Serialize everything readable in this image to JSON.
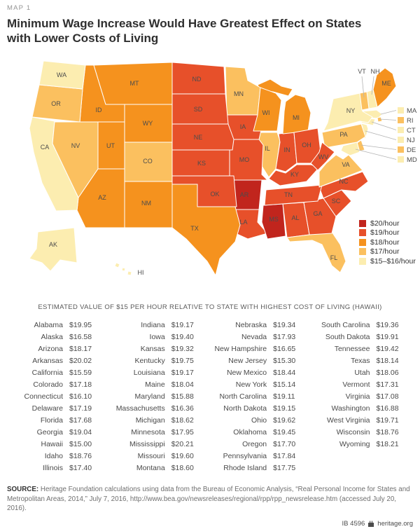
{
  "kicker": "MAP 1",
  "title": "Minimum Wage Increase Would Have Greatest Effect on States with Lower Costs of Living",
  "table_header": "ESTIMATED VALUE OF $15 PER HOUR RELATIVE TO STATE WITH HIGHEST COST OF LIVING (HAWAII)",
  "chart_data": {
    "type": "choropleth",
    "title": "Minimum Wage Increase Would Have Greatest Effect on States with Lower Costs of Living",
    "note": "Estimated value of $15 per hour relative to state with highest cost of living (Hawaii)",
    "legend_position": "right-bottom of map",
    "legend": [
      {
        "label": "$20/hour",
        "color": "#c1251d"
      },
      {
        "label": "$19/hour",
        "color": "#e7502a"
      },
      {
        "label": "$18/hour",
        "color": "#f5921e"
      },
      {
        "label": "$17/hour",
        "color": "#fbc05f"
      },
      {
        "label": "$15–$16/hour",
        "color": "#fcedb0"
      }
    ],
    "states": [
      {
        "name": "Alabama",
        "abbr": "AL",
        "value": 19.95
      },
      {
        "name": "Alaska",
        "abbr": "AK",
        "value": 16.58
      },
      {
        "name": "Arizona",
        "abbr": "AZ",
        "value": 18.17
      },
      {
        "name": "Arkansas",
        "abbr": "AR",
        "value": 20.02
      },
      {
        "name": "California",
        "abbr": "CA",
        "value": 15.59
      },
      {
        "name": "Colorado",
        "abbr": "CO",
        "value": 17.18
      },
      {
        "name": "Connecticut",
        "abbr": "CT",
        "value": 16.1
      },
      {
        "name": "Delaware",
        "abbr": "DE",
        "value": 17.19
      },
      {
        "name": "Florida",
        "abbr": "FL",
        "value": 17.68
      },
      {
        "name": "Georgia",
        "abbr": "GA",
        "value": 19.04
      },
      {
        "name": "Hawaii",
        "abbr": "HI",
        "value": 15.0
      },
      {
        "name": "Idaho",
        "abbr": "ID",
        "value": 18.76
      },
      {
        "name": "Illinois",
        "abbr": "IL",
        "value": 17.4
      },
      {
        "name": "Indiana",
        "abbr": "IN",
        "value": 19.17
      },
      {
        "name": "Iowa",
        "abbr": "IA",
        "value": 19.4
      },
      {
        "name": "Kansas",
        "abbr": "KS",
        "value": 19.32
      },
      {
        "name": "Kentucky",
        "abbr": "KY",
        "value": 19.75
      },
      {
        "name": "Louisiana",
        "abbr": "LA",
        "value": 19.17
      },
      {
        "name": "Maine",
        "abbr": "ME",
        "value": 18.04
      },
      {
        "name": "Maryland",
        "abbr": "MD",
        "value": 15.88
      },
      {
        "name": "Massachusetts",
        "abbr": "MA",
        "value": 16.36
      },
      {
        "name": "Michigan",
        "abbr": "MI",
        "value": 18.62
      },
      {
        "name": "Minnesota",
        "abbr": "MN",
        "value": 17.95
      },
      {
        "name": "Mississippi",
        "abbr": "MS",
        "value": 20.21
      },
      {
        "name": "Missouri",
        "abbr": "MO",
        "value": 19.6
      },
      {
        "name": "Montana",
        "abbr": "MT",
        "value": 18.6
      },
      {
        "name": "Nebraska",
        "abbr": "NE",
        "value": 19.34
      },
      {
        "name": "Nevada",
        "abbr": "NV",
        "value": 17.93
      },
      {
        "name": "New Hampshire",
        "abbr": "NH",
        "value": 16.65
      },
      {
        "name": "New Jersey",
        "abbr": "NJ",
        "value": 15.3
      },
      {
        "name": "New Mexico",
        "abbr": "NM",
        "value": 18.44
      },
      {
        "name": "New York",
        "abbr": "NY",
        "value": 15.14
      },
      {
        "name": "North Carolina",
        "abbr": "NC",
        "value": 19.11
      },
      {
        "name": "North Dakota",
        "abbr": "ND",
        "value": 19.15
      },
      {
        "name": "Ohio",
        "abbr": "OH",
        "value": 19.62
      },
      {
        "name": "Oklahoma",
        "abbr": "OK",
        "value": 19.45
      },
      {
        "name": "Oregon",
        "abbr": "OR",
        "value": 17.7
      },
      {
        "name": "Pennsylvania",
        "abbr": "PA",
        "value": 17.84
      },
      {
        "name": "Rhode Island",
        "abbr": "RI",
        "value": 17.75
      },
      {
        "name": "South Carolina",
        "abbr": "SC",
        "value": 19.36
      },
      {
        "name": "South Dakota",
        "abbr": "SD",
        "value": 19.91
      },
      {
        "name": "Tennessee",
        "abbr": "TN",
        "value": 19.42
      },
      {
        "name": "Texas",
        "abbr": "TX",
        "value": 18.14
      },
      {
        "name": "Utah",
        "abbr": "UT",
        "value": 18.06
      },
      {
        "name": "Vermont",
        "abbr": "VT",
        "value": 17.31
      },
      {
        "name": "Virginia",
        "abbr": "VA",
        "value": 17.08
      },
      {
        "name": "Washington",
        "abbr": "WA",
        "value": 16.88
      },
      {
        "name": "West Virginia",
        "abbr": "WV",
        "value": 19.71
      },
      {
        "name": "Wisconsin",
        "abbr": "WI",
        "value": 18.76
      },
      {
        "name": "Wyoming",
        "abbr": "WY",
        "value": 18.21
      }
    ]
  },
  "source": {
    "label": "SOURCE:",
    "text": "Heritage Foundation calculations using data from the Bureau of Economic Analysis, “Real Personal Income for States and Metropolitan Areas, 2014,” July 7, 2016, http://www.bea.gov/newsreleases/regional/rpp/rpp_newsrelease.htm (accessed July 20, 2016)."
  },
  "footer": {
    "report_id": "IB 4596",
    "site": "heritage.org"
  }
}
